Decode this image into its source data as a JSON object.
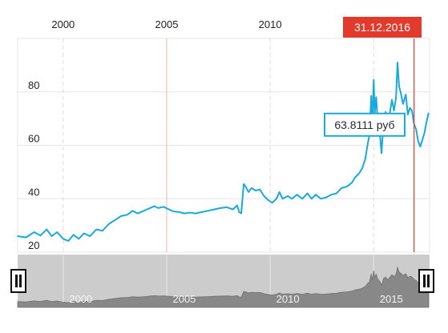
{
  "chart_data": {
    "type": "line",
    "x_axis_ticks": [
      "2000",
      "2005",
      "2010"
    ],
    "y_axis_ticks": [
      "20",
      "40",
      "60",
      "80"
    ],
    "ylim": [
      20,
      100
    ],
    "xlim": [
      1997.8,
      2017.7
    ],
    "grid": true,
    "series": [
      {
        "color": "#1aa9dc",
        "points": [
          [
            1997.8,
            26.0
          ],
          [
            1998.2,
            25.5
          ],
          [
            1998.6,
            27.5
          ],
          [
            1998.9,
            26.2
          ],
          [
            1999.2,
            28.5
          ],
          [
            1999.45,
            26.0
          ],
          [
            1999.7,
            27.5
          ],
          [
            2000.0,
            25.0
          ],
          [
            2000.25,
            24.2
          ],
          [
            2000.5,
            26.5
          ],
          [
            2000.75,
            25.0
          ],
          [
            2001.0,
            27.0
          ],
          [
            2001.3,
            26.0
          ],
          [
            2001.6,
            28.5
          ],
          [
            2001.9,
            28.0
          ],
          [
            2002.2,
            30.5
          ],
          [
            2002.5,
            32.0
          ],
          [
            2002.8,
            33.5
          ],
          [
            2003.1,
            34.0
          ],
          [
            2003.35,
            35.5
          ],
          [
            2003.6,
            34.5
          ],
          [
            2003.9,
            35.5
          ],
          [
            2004.2,
            36.5
          ],
          [
            2004.4,
            37.2
          ],
          [
            2004.6,
            36.5
          ],
          [
            2004.85,
            37.0
          ],
          [
            2005.1,
            36.0
          ],
          [
            2005.35,
            35.2
          ],
          [
            2005.6,
            35.0
          ],
          [
            2005.85,
            34.5
          ],
          [
            2006.1,
            34.8
          ],
          [
            2006.4,
            34.5
          ],
          [
            2006.7,
            35.0
          ],
          [
            2007.0,
            35.5
          ],
          [
            2007.3,
            36.0
          ],
          [
            2007.6,
            36.5
          ],
          [
            2007.9,
            36.8
          ],
          [
            2008.2,
            36.0
          ],
          [
            2008.4,
            37.5
          ],
          [
            2008.5,
            35.0
          ],
          [
            2008.6,
            34.5
          ],
          [
            2008.72,
            45.5
          ],
          [
            2008.82,
            44.5
          ],
          [
            2008.95,
            42.5
          ],
          [
            2009.1,
            44.0
          ],
          [
            2009.3,
            43.0
          ],
          [
            2009.5,
            43.5
          ],
          [
            2009.7,
            41.0
          ],
          [
            2009.9,
            39.5
          ],
          [
            2010.1,
            38.5
          ],
          [
            2010.3,
            40.0
          ],
          [
            2010.45,
            42.5
          ],
          [
            2010.6,
            40.0
          ],
          [
            2010.85,
            41.0
          ],
          [
            2011.05,
            40.0
          ],
          [
            2011.3,
            41.5
          ],
          [
            2011.55,
            40.0
          ],
          [
            2011.8,
            42.0
          ],
          [
            2012.0,
            40.0
          ],
          [
            2012.2,
            41.5
          ],
          [
            2012.45,
            40.0
          ],
          [
            2012.7,
            40.5
          ],
          [
            2012.95,
            41.5
          ],
          [
            2013.2,
            42.0
          ],
          [
            2013.45,
            44.0
          ],
          [
            2013.7,
            44.5
          ],
          [
            2013.95,
            46.0
          ],
          [
            2014.1,
            48.0
          ],
          [
            2014.3,
            49.5
          ],
          [
            2014.45,
            51.5
          ],
          [
            2014.6,
            55.0
          ],
          [
            2014.7,
            60.0
          ],
          [
            2014.8,
            64.0
          ],
          [
            2014.88,
            78.5
          ],
          [
            2014.93,
            67.0
          ],
          [
            2015.0,
            84.5
          ],
          [
            2015.05,
            72.0
          ],
          [
            2015.12,
            78.0
          ],
          [
            2015.2,
            68.5
          ],
          [
            2015.3,
            64.0
          ],
          [
            2015.38,
            57.0
          ],
          [
            2015.48,
            70.0
          ],
          [
            2015.58,
            72.5
          ],
          [
            2015.68,
            67.0
          ],
          [
            2015.78,
            72.0
          ],
          [
            2015.88,
            77.0
          ],
          [
            2015.98,
            73.0
          ],
          [
            2016.08,
            78.0
          ],
          [
            2016.15,
            91.0
          ],
          [
            2016.23,
            82.0
          ],
          [
            2016.3,
            80.0
          ],
          [
            2016.42,
            75.5
          ],
          [
            2016.55,
            79.0
          ],
          [
            2016.65,
            71.5
          ],
          [
            2016.75,
            74.0
          ],
          [
            2016.85,
            73.0
          ],
          [
            2016.95,
            68.0
          ],
          [
            2017.05,
            66.0
          ],
          [
            2017.15,
            61.5
          ],
          [
            2017.25,
            59.5
          ],
          [
            2017.35,
            62.0
          ],
          [
            2017.45,
            64.5
          ],
          [
            2017.55,
            68.5
          ],
          [
            2017.65,
            72.0
          ]
        ]
      }
    ],
    "navigator_ticks": [
      "2000",
      "2005",
      "2010",
      "2015"
    ],
    "marker_date": "31.12.2016",
    "marker_x": 2016.95,
    "tooltip_value": "63.8111 руб",
    "tooltip_x": 2017.35,
    "colors": {
      "line": "#1aa9dc",
      "marker": "#e23b2e",
      "navigator_bg": "#cccccc",
      "navigator_area": "#888888",
      "grid": "#e6e6e6",
      "tooltip_border": "#1aa9dc"
    }
  }
}
